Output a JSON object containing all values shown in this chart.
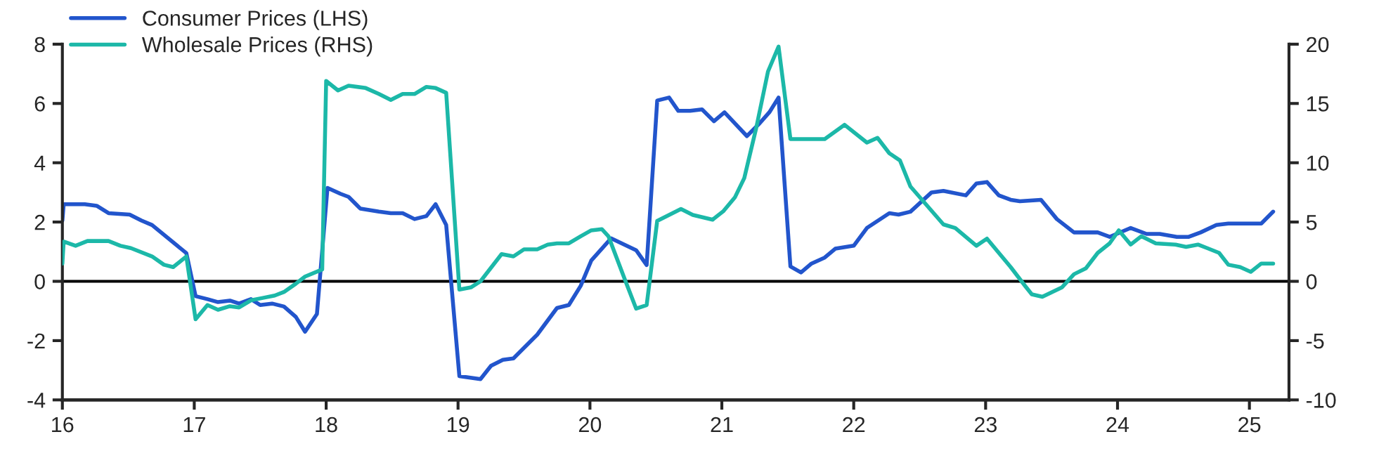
{
  "chart_data": {
    "type": "line",
    "xlim": [
      16,
      25.3
    ],
    "xticks": [
      {
        "value": 16,
        "label": "16"
      },
      {
        "value": 17,
        "label": "17"
      },
      {
        "value": 18,
        "label": "18"
      },
      {
        "value": 19,
        "label": "19"
      },
      {
        "value": 20,
        "label": "20"
      },
      {
        "value": 21,
        "label": "21"
      },
      {
        "value": 22,
        "label": "22"
      },
      {
        "value": 23,
        "label": "23"
      },
      {
        "value": 24,
        "label": "24"
      },
      {
        "value": 25,
        "label": "25"
      }
    ],
    "ylim": [
      -4,
      8
    ],
    "yticks": [
      -4,
      -2,
      0,
      2,
      4,
      6,
      8
    ],
    "y2lim": [
      -10,
      20
    ],
    "y2ticks": [
      -10,
      -5,
      0,
      5,
      10,
      15,
      20
    ],
    "ref_lines": [
      {
        "axis": "y",
        "value": 0,
        "color": "#000000"
      }
    ],
    "grid": false,
    "legend": "top left",
    "line_style": "solid",
    "marker": "none",
    "series": [
      {
        "name": "Consumer Prices (LHS)",
        "color": "#2255cc",
        "x": [
          16.0,
          16.01,
          16.17,
          16.26,
          16.35,
          16.51,
          16.6,
          16.68,
          16.94,
          17.01,
          17.1,
          17.18,
          17.27,
          17.34,
          17.43,
          17.5,
          17.59,
          17.68,
          17.77,
          17.84,
          17.93,
          18.01,
          18.11,
          18.17,
          18.26,
          18.4,
          18.49,
          18.58,
          18.67,
          18.76,
          18.83,
          18.91,
          19.01,
          19.17,
          19.25,
          19.34,
          19.42,
          19.6,
          19.75,
          19.84,
          19.93,
          20.01,
          20.16,
          20.35,
          20.43,
          20.51,
          20.6,
          20.67,
          20.76,
          20.85,
          20.94,
          21.02,
          21.19,
          21.28,
          21.36,
          21.43,
          21.52,
          21.6,
          21.68,
          21.78,
          21.86,
          22.0,
          22.1,
          22.27,
          22.34,
          22.43,
          22.59,
          22.68,
          22.85,
          22.93,
          23.01,
          23.1,
          23.19,
          23.26,
          23.42,
          23.54,
          23.67,
          23.85,
          23.94,
          24.1,
          24.22,
          24.32,
          24.45,
          24.54,
          24.63,
          24.75,
          24.84,
          25.09,
          25.18
        ],
        "values": [
          2.05,
          2.6,
          2.6,
          2.55,
          2.3,
          2.25,
          2.05,
          1.9,
          0.95,
          -0.5,
          -0.6,
          -0.7,
          -0.65,
          -0.75,
          -0.6,
          -0.8,
          -0.75,
          -0.85,
          -1.2,
          -1.7,
          -1.1,
          3.15,
          2.95,
          2.85,
          2.45,
          2.35,
          2.3,
          2.3,
          2.1,
          2.2,
          2.6,
          1.9,
          -3.2,
          -3.3,
          -2.85,
          -2.65,
          -2.6,
          -1.8,
          -0.9,
          -0.8,
          -0.15,
          0.7,
          1.45,
          1.05,
          0.55,
          6.1,
          6.2,
          5.75,
          5.75,
          5.8,
          5.4,
          5.7,
          4.9,
          5.3,
          5.7,
          6.2,
          0.5,
          0.3,
          0.6,
          0.8,
          1.1,
          1.2,
          1.8,
          2.3,
          2.25,
          2.35,
          3.0,
          3.05,
          2.9,
          3.3,
          3.35,
          2.9,
          2.75,
          2.7,
          2.75,
          2.1,
          1.65,
          1.65,
          1.5,
          1.8,
          1.6,
          1.6,
          1.5,
          1.5,
          1.65,
          1.9,
          1.95,
          1.95,
          2.35
        ]
      },
      {
        "name": "Wholesale Prices (RHS)",
        "color": "#1cb8a8",
        "axis": "y2",
        "x": [
          16.0,
          16.01,
          16.1,
          16.19,
          16.35,
          16.44,
          16.52,
          16.68,
          16.77,
          16.84,
          16.94,
          17.01,
          17.1,
          17.18,
          17.27,
          17.34,
          17.43,
          17.52,
          17.61,
          17.68,
          17.77,
          17.84,
          17.97,
          18.0,
          18.09,
          18.17,
          18.3,
          18.4,
          18.49,
          18.58,
          18.67,
          18.76,
          18.83,
          18.91,
          19.01,
          19.1,
          19.17,
          19.33,
          19.42,
          19.5,
          19.6,
          19.68,
          19.75,
          19.84,
          19.93,
          20.01,
          20.09,
          20.14,
          20.27,
          20.35,
          20.43,
          20.51,
          20.6,
          20.69,
          20.78,
          20.93,
          21.01,
          21.1,
          21.17,
          21.26,
          21.35,
          21.43,
          21.52,
          21.78,
          21.93,
          22.1,
          22.18,
          22.27,
          22.35,
          22.43,
          22.68,
          22.77,
          22.93,
          23.01,
          23.19,
          23.3,
          23.35,
          23.43,
          23.58,
          23.67,
          23.76,
          23.85,
          23.94,
          24.01,
          24.1,
          24.18,
          24.29,
          24.44,
          24.52,
          24.61,
          24.68,
          24.77,
          24.84,
          24.93,
          25.01,
          25.09,
          25.18
        ],
        "values": [
          1.5,
          3.35,
          3.0,
          3.4,
          3.4,
          3.0,
          2.8,
          2.1,
          1.4,
          1.2,
          2.1,
          -3.2,
          -2.0,
          -2.4,
          -2.1,
          -2.2,
          -1.6,
          -1.4,
          -1.2,
          -0.9,
          -0.2,
          0.4,
          1.0,
          16.9,
          16.1,
          16.5,
          16.3,
          15.8,
          15.3,
          15.8,
          15.8,
          16.4,
          16.3,
          15.9,
          -0.7,
          -0.5,
          0.0,
          2.3,
          2.1,
          2.7,
          2.7,
          3.1,
          3.2,
          3.2,
          3.8,
          4.3,
          4.4,
          3.8,
          0.0,
          -2.3,
          -2.0,
          5.1,
          5.6,
          6.1,
          5.6,
          5.2,
          5.9,
          7.1,
          8.7,
          12.9,
          17.7,
          19.8,
          12.0,
          12.0,
          13.2,
          11.7,
          12.1,
          10.8,
          10.2,
          8.0,
          4.8,
          4.5,
          3.0,
          3.6,
          1.2,
          -0.4,
          -1.1,
          -1.3,
          -0.5,
          0.6,
          1.1,
          2.4,
          3.2,
          4.3,
          3.1,
          3.8,
          3.2,
          3.1,
          2.9,
          3.1,
          2.8,
          2.4,
          1.4,
          1.2,
          0.8,
          1.5,
          1.5
        ]
      }
    ]
  }
}
